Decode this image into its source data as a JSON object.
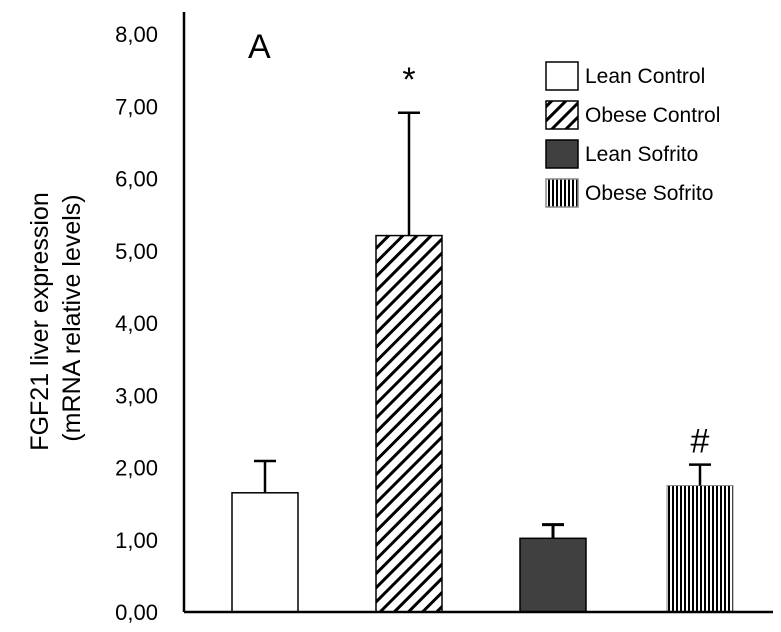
{
  "chart_data": {
    "type": "bar",
    "panel_label": "A",
    "ylabel": [
      "FGF21 liver expression",
      "(mRNA relative levels)"
    ],
    "ylim": [
      0,
      8
    ],
    "yticks": [
      "0,00",
      "1,00",
      "2,00",
      "3,00",
      "4,00",
      "5,00",
      "6,00",
      "7,00",
      "8,00"
    ],
    "grid": false,
    "legend_position": "top-right",
    "categories": [
      "Lean Control",
      "Obese Control",
      "Lean Sofrito",
      "Obese Sofrito"
    ],
    "values": [
      1.65,
      5.21,
      1.02,
      1.75
    ],
    "errors": [
      0.44,
      1.7,
      0.19,
      0.29
    ],
    "patterns": [
      "white",
      "diagonal-hatch",
      "dark-solid",
      "vertical-stripes"
    ],
    "annotations": [
      "",
      "*",
      "",
      "#"
    ],
    "colors": {
      "dark_fill": "#404040",
      "stroke": "#000000"
    }
  }
}
